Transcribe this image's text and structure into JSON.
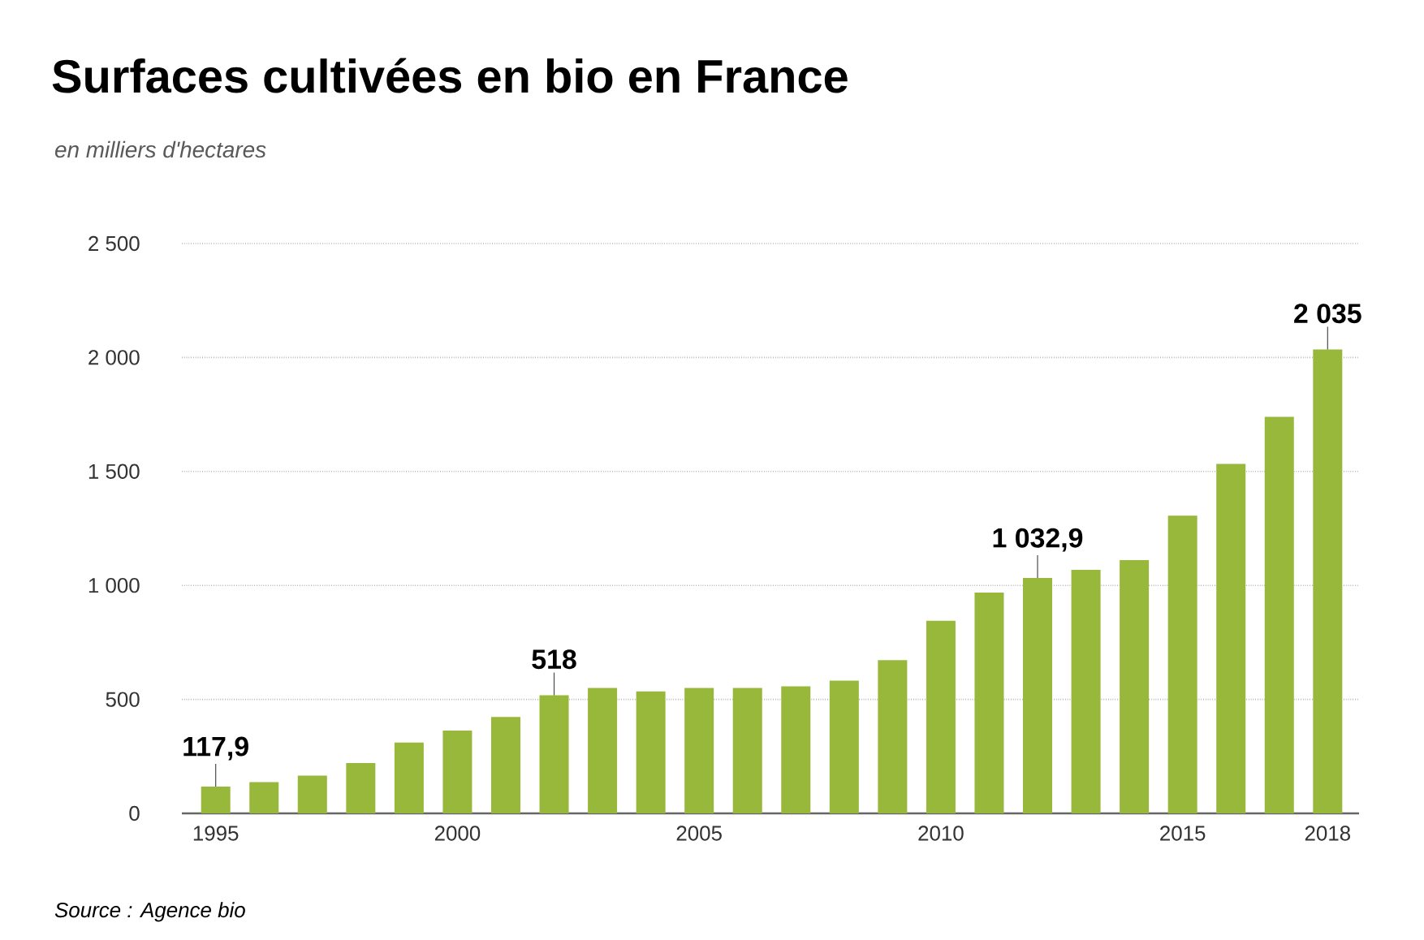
{
  "chart_data": {
    "type": "bar",
    "title": "Surfaces cultivées en bio en France",
    "subtitle": "en milliers d'hectares",
    "x": [
      1995,
      1996,
      1997,
      1998,
      1999,
      2000,
      2001,
      2002,
      2003,
      2004,
      2005,
      2006,
      2007,
      2008,
      2009,
      2010,
      2011,
      2012,
      2013,
      2014,
      2015,
      2016,
      2017,
      2018
    ],
    "values": [
      117.9,
      137,
      166,
      221,
      311,
      363,
      423,
      518,
      550,
      535,
      550,
      550,
      557,
      582,
      672,
      845,
      969,
      1032.9,
      1068,
      1111,
      1306,
      1533,
      1740,
      2035
    ],
    "value_labels": [
      "117,9",
      null,
      null,
      null,
      null,
      null,
      null,
      "518",
      null,
      null,
      null,
      null,
      null,
      null,
      null,
      null,
      null,
      "1 032,9",
      null,
      null,
      null,
      null,
      null,
      "2 035"
    ],
    "color": "#97b83a",
    "xlim": [
      1994.3,
      2018.65
    ],
    "xticks": [
      1995,
      2000,
      2005,
      2010,
      2015,
      2018
    ],
    "ylim": [
      0,
      2500
    ],
    "yticks": [
      0,
      500,
      {
        "value": 1000,
        "label": "1 000"
      },
      {
        "value": 1500,
        "label": "1 500"
      },
      {
        "value": 2000,
        "label": "2 000"
      },
      {
        "value": 2500,
        "label": "2 500"
      }
    ],
    "grid": "y",
    "annotations": [
      "Source : Agence bio"
    ]
  }
}
